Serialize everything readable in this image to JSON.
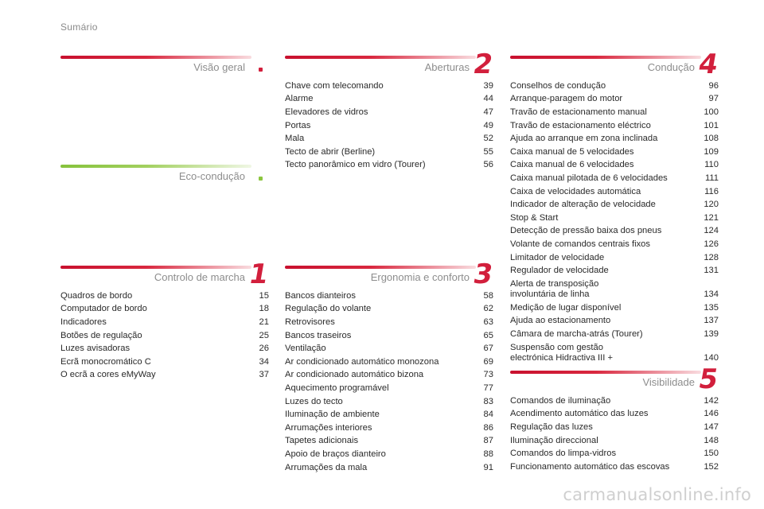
{
  "page_title": "Sumário",
  "watermark": "carmanualsonline.info",
  "sections": {
    "visao": {
      "title": "Visão geral"
    },
    "eco": {
      "title": "Eco-condução"
    },
    "controlo": {
      "title": "Controlo de marcha",
      "number": "1",
      "entries": [
        {
          "label": "Quadros de bordo",
          "page": "15"
        },
        {
          "label": "Computador de bordo",
          "page": "18"
        },
        {
          "label": "Indicadores",
          "page": "21"
        },
        {
          "label": "Botões de regulação",
          "page": "25"
        },
        {
          "label": "Luzes avisadoras",
          "page": "26"
        },
        {
          "label": "Ecrã monocromático C",
          "page": "34"
        },
        {
          "label": "O ecrã a cores eMyWay",
          "page": "37"
        }
      ]
    },
    "aberturas": {
      "title": "Aberturas",
      "number": "2",
      "entries": [
        {
          "label": "Chave com telecomando",
          "page": "39"
        },
        {
          "label": "Alarme",
          "page": "44"
        },
        {
          "label": "Elevadores de vidros",
          "page": "47"
        },
        {
          "label": "Portas",
          "page": "49"
        },
        {
          "label": "Mala",
          "page": "52"
        },
        {
          "label": "Tecto de abrir (Berline)",
          "page": "55"
        },
        {
          "label": "Tecto panorâmico em vidro (Tourer)",
          "page": "56"
        }
      ]
    },
    "ergonomia": {
      "title": "Ergonomia e conforto",
      "number": "3",
      "entries": [
        {
          "label": "Bancos dianteiros",
          "page": "58"
        },
        {
          "label": "Regulação do volante",
          "page": "62"
        },
        {
          "label": "Retrovisores",
          "page": "63"
        },
        {
          "label": "Bancos traseiros",
          "page": "65"
        },
        {
          "label": "Ventilação",
          "page": "67"
        },
        {
          "label": "Ar condicionado automático monozona",
          "page": "69"
        },
        {
          "label": "Ar condicionado automático bizona",
          "page": "73"
        },
        {
          "label": "Aquecimento programável",
          "page": "77"
        },
        {
          "label": "Luzes do tecto",
          "page": "83"
        },
        {
          "label": "Iluminação de ambiente",
          "page": "84"
        },
        {
          "label": "Arrumações interiores",
          "page": "86"
        },
        {
          "label": "Tapetes adicionais",
          "page": "87"
        },
        {
          "label": "Apoio de braços dianteiro",
          "page": "88"
        },
        {
          "label": "Arrumações da mala",
          "page": "91"
        }
      ]
    },
    "conducao": {
      "title": "Condução",
      "number": "4",
      "entries": [
        {
          "label": "Conselhos de condução",
          "page": "96"
        },
        {
          "label": "Arranque-paragem do motor",
          "page": "97"
        },
        {
          "label": "Travão de estacionamento manual",
          "page": "100"
        },
        {
          "label": "Travão de estacionamento eléctrico",
          "page": "101"
        },
        {
          "label": "Ajuda ao arranque em zona inclinada",
          "page": "108"
        },
        {
          "label": "Caixa manual de 5 velocidades",
          "page": "109"
        },
        {
          "label": "Caixa manual de 6 velocidades",
          "page": "110"
        },
        {
          "label": "Caixa manual pilotada de 6 velocidades",
          "page": "111"
        },
        {
          "label": "Caixa de velocidades automática",
          "page": "116"
        },
        {
          "label": "Indicador de alteração de velocidade",
          "page": "120"
        },
        {
          "label": "Stop & Start",
          "page": "121"
        },
        {
          "label": "Detecção de pressão baixa dos pneus",
          "page": "124"
        },
        {
          "label": "Volante de comandos centrais fixos",
          "page": "126"
        },
        {
          "label": "Limitador de velocidade",
          "page": "128"
        },
        {
          "label": "Regulador de velocidade",
          "page": "131"
        },
        {
          "label": "Alerta de transposição\ninvoluntária de linha",
          "page": "134"
        },
        {
          "label": "Medição de lugar disponível",
          "page": "135"
        },
        {
          "label": "Ajuda ao estacionamento",
          "page": "137"
        },
        {
          "label": "Câmara de marcha-atrás (Tourer)",
          "page": "139"
        },
        {
          "label": "Suspensão com gestão\nelectrónica Hidractiva III +",
          "page": "140"
        }
      ]
    },
    "visibilidade": {
      "title": "Visibilidade",
      "number": "5",
      "entries": [
        {
          "label": "Comandos de iluminação",
          "page": "142"
        },
        {
          "label": "Acendimento automático das luzes",
          "page": "146"
        },
        {
          "label": "Regulação das luzes",
          "page": "147"
        },
        {
          "label": "Iluminação direccional",
          "page": "148"
        },
        {
          "label": "Comandos do limpa-vidros",
          "page": "150"
        },
        {
          "label": "Funcionamento automático das escovas",
          "page": "152"
        }
      ]
    }
  },
  "colors": {
    "accent_red": "#d21f3c",
    "accent_green": "#8cc63f",
    "title_gray": "#8d8d8d"
  }
}
